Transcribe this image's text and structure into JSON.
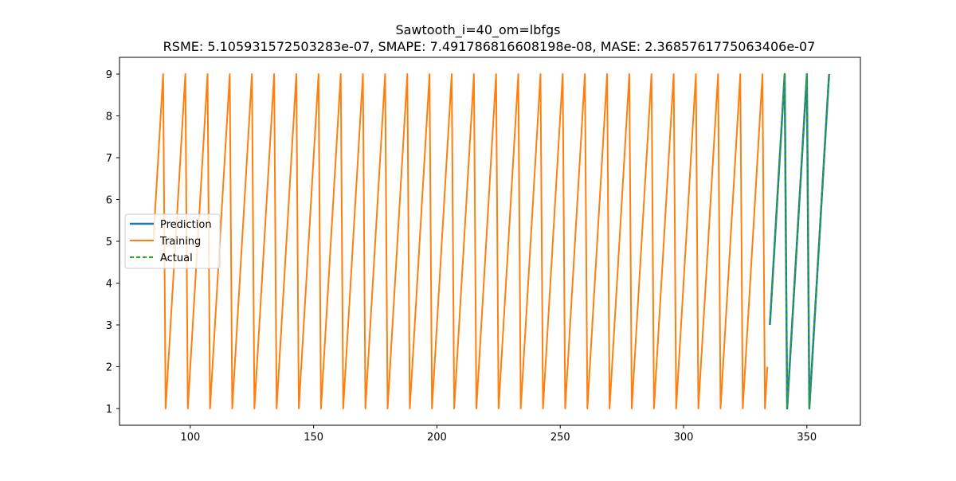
{
  "chart_data": {
    "type": "line",
    "title": "Sawtooth_i=40_om=lbfgs",
    "subtitle": "RSME: 5.105931572503283e-07, SMAPE: 7.491786816608198e-08, MASE: 2.3685761775063406e-07",
    "xlabel": "",
    "ylabel": "",
    "xlim": [
      71.3,
      371.7
    ],
    "ylim": [
      0.6,
      9.4
    ],
    "xticks": [
      100,
      150,
      200,
      250,
      300,
      350
    ],
    "yticks": [
      1,
      2,
      3,
      4,
      5,
      6,
      7,
      8,
      9
    ],
    "grid": false,
    "legend_position": "center-left",
    "series": [
      {
        "name": "Prediction",
        "color": "#1f77b4",
        "style": "solid",
        "sawtooth": {
          "x_start": 335,
          "x_end": 359,
          "first_value": 3,
          "period": 9,
          "min": 1,
          "max": 9
        }
      },
      {
        "name": "Training",
        "color": "#ff7f0e",
        "style": "solid",
        "sawtooth": {
          "x_start": 85,
          "x_end": 334,
          "first_value": 5,
          "period": 9,
          "min": 1,
          "max": 9
        }
      },
      {
        "name": "Actual",
        "color": "#2ca02c",
        "style": "dashed",
        "sawtooth": {
          "x_start": 335,
          "x_end": 359,
          "first_value": 3,
          "period": 9,
          "min": 1,
          "max": 9
        }
      }
    ]
  }
}
